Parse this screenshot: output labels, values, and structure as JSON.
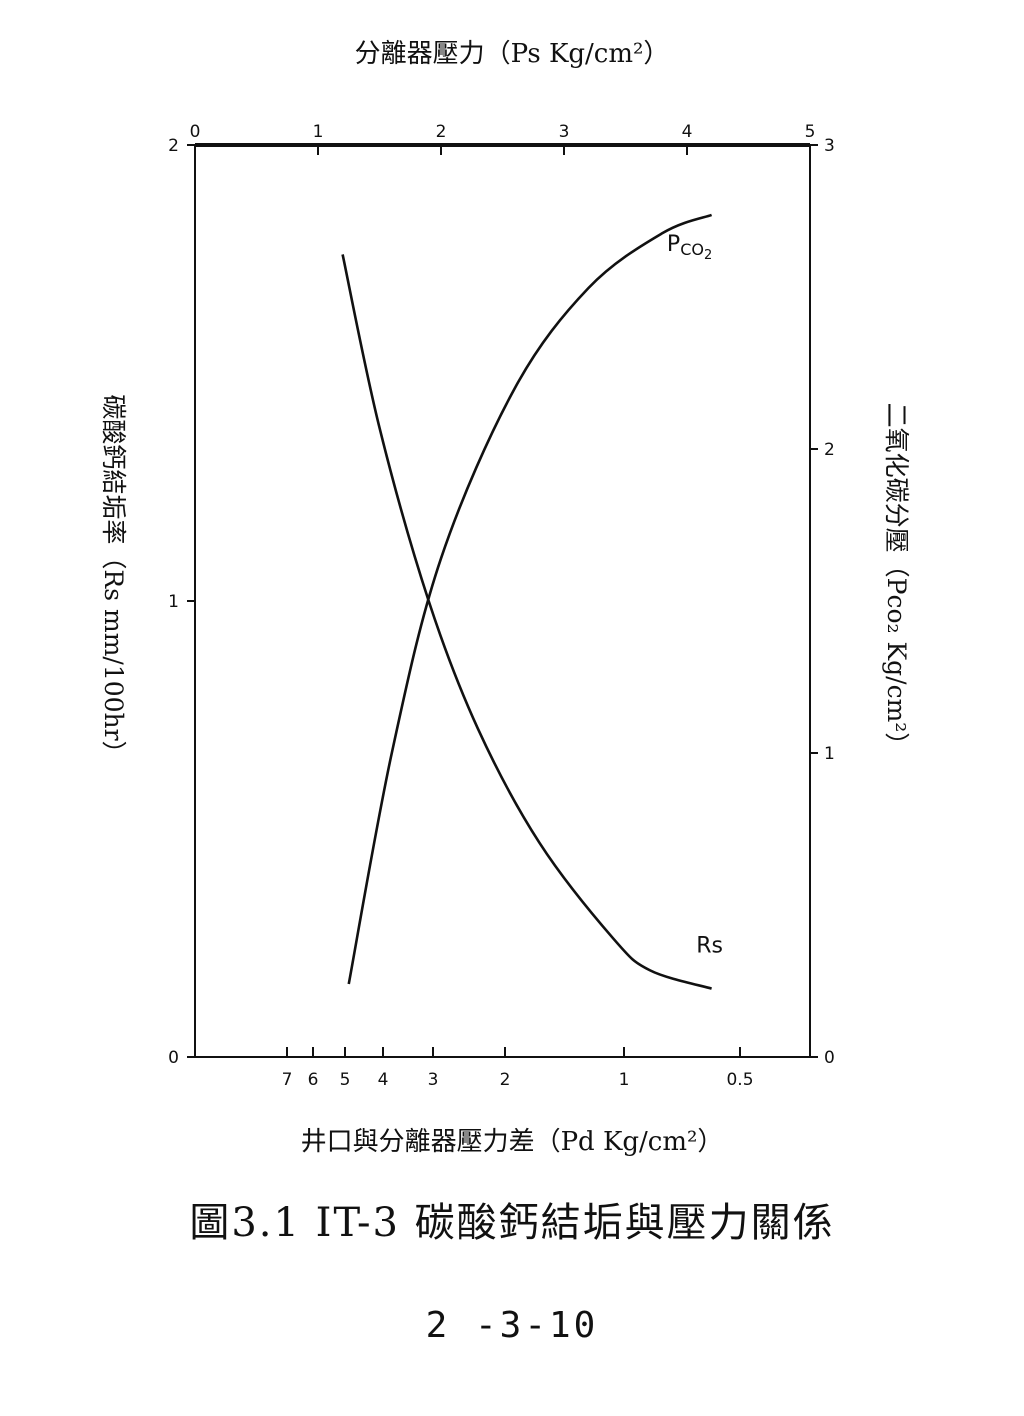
{
  "chart_data": {
    "type": "line",
    "title": "",
    "top_axis": {
      "label": "分離器壓力（Ps Kg/cm²）",
      "ticks": [
        0,
        1,
        2,
        3,
        4,
        5
      ],
      "range": [
        0,
        5
      ]
    },
    "bottom_axis": {
      "label": "井口與分離器壓力差（Pd Kg/cm²）",
      "ticks": [
        "7",
        "6",
        "5",
        "4",
        "3",
        "2",
        "1",
        "0.5"
      ]
    },
    "left_axis": {
      "label": "碳酸鈣結垢率（Rs mm/100hr）",
      "ticks": [
        0,
        1,
        2
      ],
      "range": [
        0,
        2
      ]
    },
    "right_axis": {
      "label": "二氧化碳分壓（Pco₂ Kg/cm²）",
      "ticks": [
        0,
        1,
        2,
        3
      ],
      "range": [
        0,
        3
      ]
    },
    "series": [
      {
        "name": "Rs",
        "axis": "left",
        "x_ps": [
          1.2,
          1.5,
          1.9,
          2.3,
          2.8,
          3.4,
          3.7,
          4.2
        ],
        "y": [
          1.76,
          1.38,
          1.0,
          0.72,
          0.47,
          0.26,
          0.19,
          0.15
        ]
      },
      {
        "name": "Pco2",
        "axis": "right",
        "x_ps": [
          1.25,
          1.6,
          2.0,
          2.6,
          3.2,
          3.8,
          4.2
        ],
        "y": [
          0.24,
          1.0,
          1.64,
          2.2,
          2.53,
          2.71,
          2.77
        ]
      }
    ]
  },
  "caption": "圖3.1    IT-3 碳酸鈣結垢與壓力關係",
  "page_number": "2 -3-10"
}
